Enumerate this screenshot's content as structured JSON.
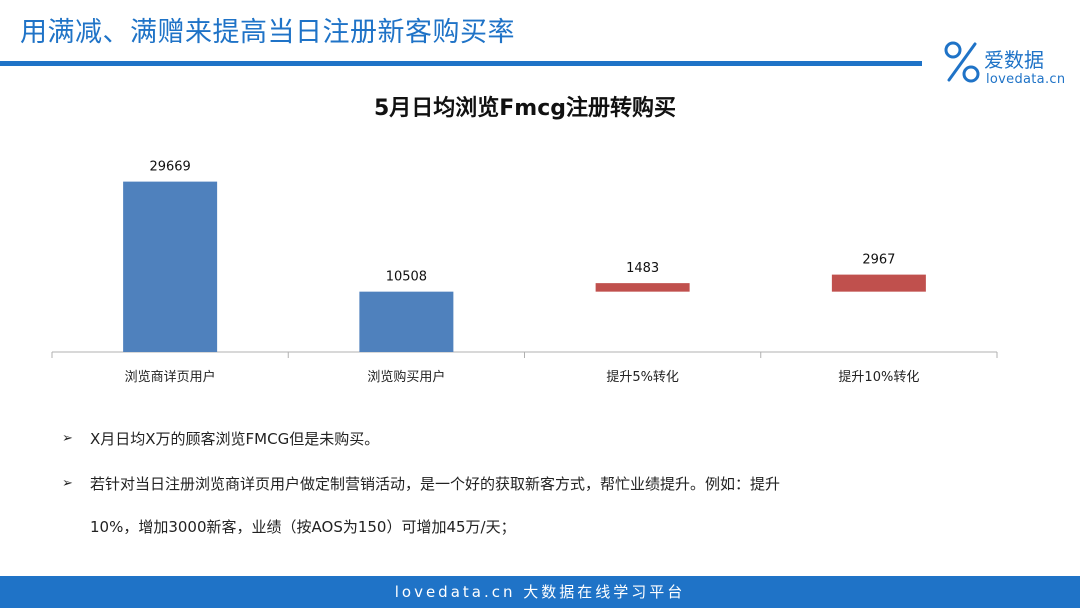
{
  "slide": {
    "title": "用满减、满赠来提高当日注册新客购买率"
  },
  "logo": {
    "name_cn": "爱数据",
    "name_en": "lovedata.cn"
  },
  "colors": {
    "accent": "#1f73c7",
    "bar_blue": "#4f81bd",
    "bar_red": "#c0504d"
  },
  "chart_data": {
    "type": "bar",
    "title": "5月日均浏览Fmcg注册转购买",
    "categories": [
      "浏览商详页用户",
      "浏览购买用户",
      "提升5%转化",
      "提升10%转化"
    ],
    "values": [
      29669,
      10508,
      1483,
      2967
    ],
    "bar_style": [
      "full",
      "full",
      "floating",
      "floating"
    ],
    "colors": [
      "#4f81bd",
      "#4f81bd",
      "#c0504d",
      "#c0504d"
    ],
    "ylim": [
      0,
      35000
    ],
    "grid": false,
    "legend": "none"
  },
  "bullets": [
    {
      "marker": "➢",
      "text": "X月日均X万的顾客浏览FMCG但是未购买。"
    },
    {
      "marker": "➢",
      "text": "若针对当日注册浏览商详页用户做定制营销活动，是一个好的获取新客方式，帮忙业绩提升。例如：提升",
      "text2": "10%，增加3000新客，业绩（按AOS为150）可增加45万/天；"
    }
  ],
  "footer": {
    "text": "lovedata.cn 大数据在线学习平台"
  }
}
